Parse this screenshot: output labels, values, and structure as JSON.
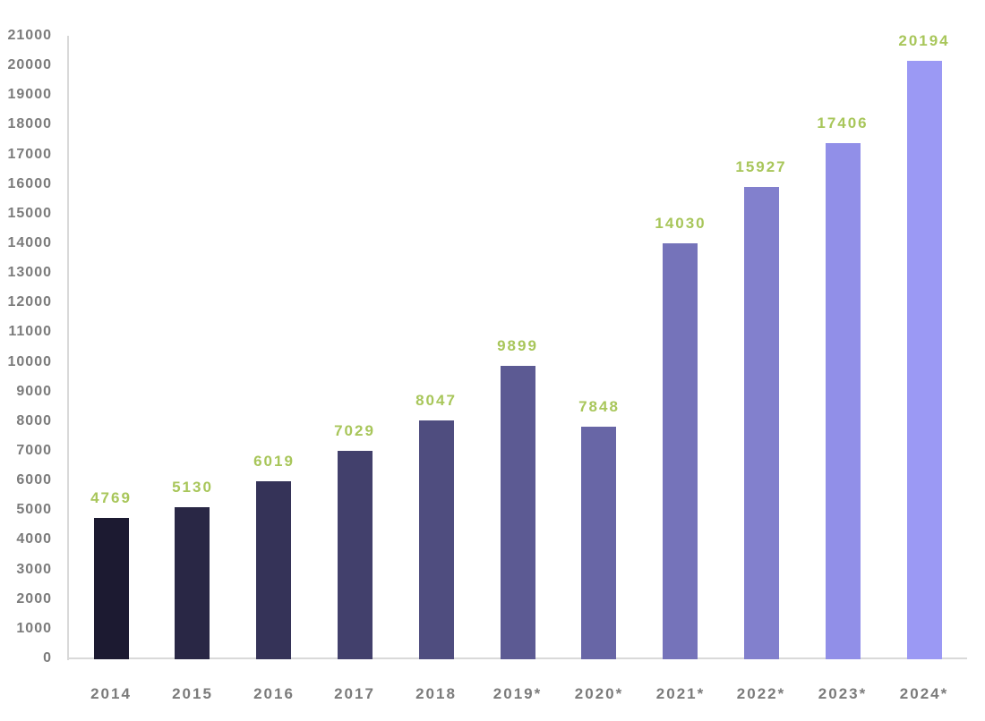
{
  "chart_data": {
    "type": "bar",
    "title": "",
    "xlabel": "",
    "ylabel": "",
    "categories": [
      "2014",
      "2015",
      "2016",
      "2017",
      "2018",
      "2019*",
      "2020*",
      "2021*",
      "2022*",
      "2023*",
      "2024*"
    ],
    "values": [
      4769,
      5130,
      6019,
      7029,
      8047,
      9899,
      7848,
      14030,
      15927,
      17406,
      20194
    ],
    "value_labels": [
      "4769",
      "5130",
      "6019",
      "7029",
      "8047",
      "9899",
      "7848",
      "14030",
      "15927",
      "17406",
      "20194"
    ],
    "bar_colors": [
      "#1c1a31",
      "#292745",
      "#353358",
      "#42406c",
      "#4f4d7f",
      "#5c5a93",
      "#6866a6",
      "#7573ba",
      "#8280cd",
      "#918fe8",
      "#9b99f4"
    ],
    "ylim": [
      0,
      21000
    ],
    "y_tick_step": 1000,
    "y_ticks": [
      "0",
      "1000",
      "2000",
      "3000",
      "4000",
      "5000",
      "6000",
      "7000",
      "8000",
      "9000",
      "10000",
      "11000",
      "12000",
      "13000",
      "14000",
      "15000",
      "16000",
      "17000",
      "18000",
      "19000",
      "20000",
      "21000"
    ],
    "grid": false,
    "legend": false,
    "colors": {
      "value_label": "#a8c65a",
      "axis_text": "#7b7b7b",
      "axis_line": "#d9d9d9",
      "background": "#ffffff"
    }
  }
}
